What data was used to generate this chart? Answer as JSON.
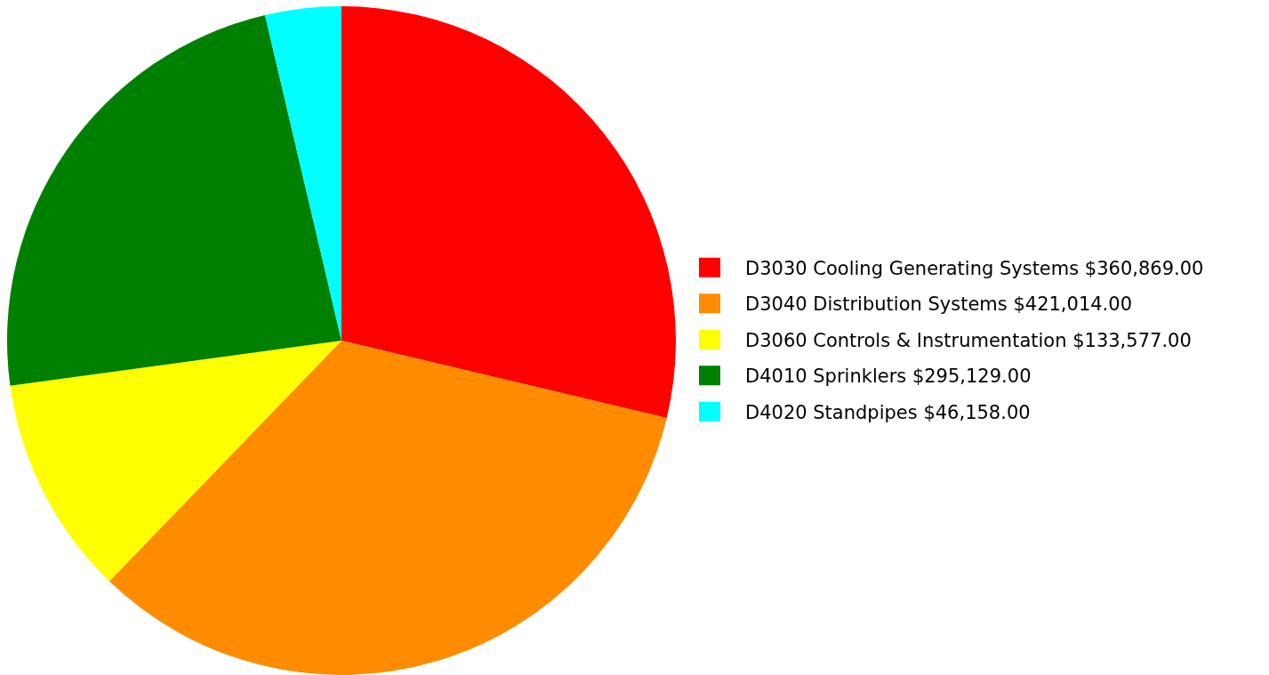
{
  "chart_data": {
    "type": "pie",
    "categories": [
      "D3030 Cooling Generating Systems",
      "D3040 Distribution Systems",
      "D3060 Controls & Instrumentation",
      "D4010 Sprinklers",
      "D4020 Standpipes"
    ],
    "values": [
      360869,
      421014,
      133577,
      295129,
      46158
    ],
    "value_labels": [
      "$360,869.00",
      "$421,014.00",
      "$133,577.00",
      "$295,129.00",
      "$46,158.00"
    ],
    "colors": [
      "#ff0000",
      "#ff8c00",
      "#ffff00",
      "#008000",
      "#00ffff"
    ],
    "legend": "right"
  }
}
